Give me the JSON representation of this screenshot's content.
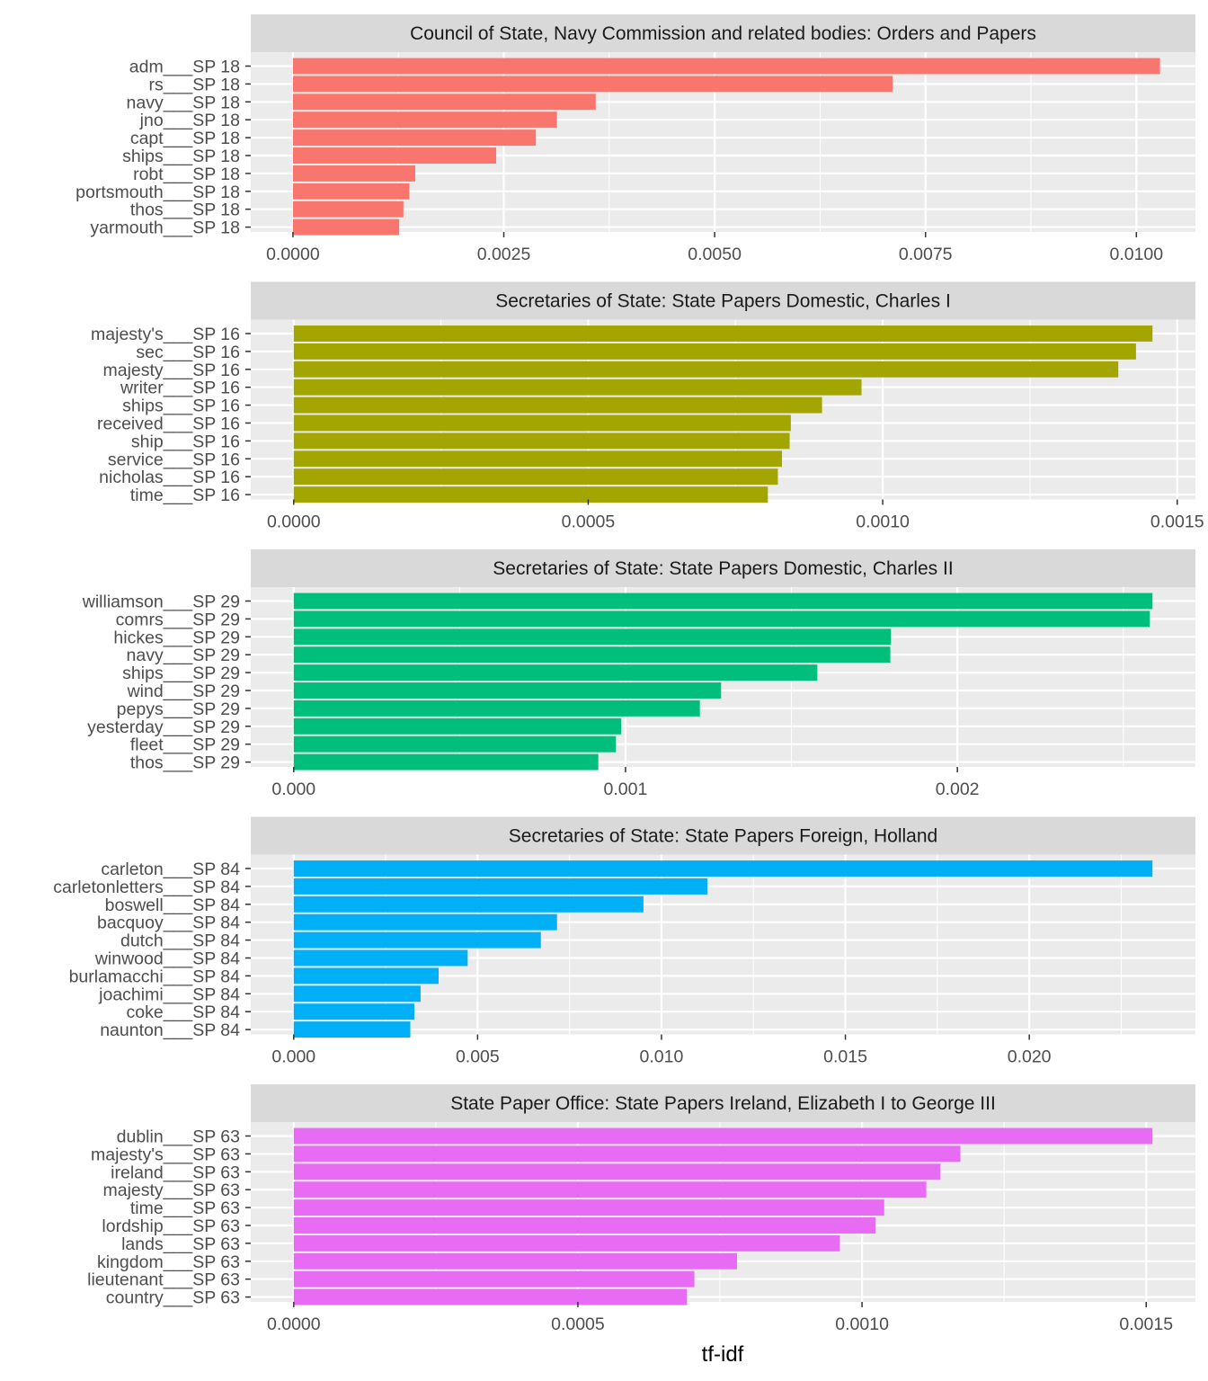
{
  "chart_data": {
    "type": "bar",
    "orientation": "horizontal",
    "layout": "faceted, 5 panels stacked vertically, free x scales",
    "xlabel": "tf-idf",
    "ylabel": "",
    "grid": true,
    "legend": "none",
    "panels": [
      {
        "title": "Council of State, Navy Commission and related bodies: Orders and Papers",
        "color": "#F8766D",
        "categories": [
          "adm___SP 18",
          "rs___SP 18",
          "navy___SP 18",
          "jno___SP 18",
          "capt___SP 18",
          "ships___SP 18",
          "robt___SP 18",
          "portsmouth___SP 18",
          "thos___SP 18",
          "yarmouth___SP 18"
        ],
        "values": [
          0.01028,
          0.00711,
          0.00359,
          0.00313,
          0.00288,
          0.00241,
          0.00145,
          0.00138,
          0.00131,
          0.00126
        ],
        "xlim": [
          -0.0005,
          0.0107
        ],
        "xticks": [
          0,
          0.0025,
          0.005,
          0.0075,
          0.01
        ],
        "xtick_labels": [
          "0.0000",
          "0.0025",
          "0.0050",
          "0.0075",
          "0.0100"
        ]
      },
      {
        "title": "Secretaries of State: State Papers Domestic, Charles I",
        "color": "#A3A500",
        "categories": [
          "majesty's___SP 16",
          "sec___SP 16",
          "majesty___SP 16",
          "writer___SP 16",
          "ships___SP 16",
          "received___SP 16",
          "ship___SP 16",
          "service___SP 16",
          "nicholas___SP 16",
          "time___SP 16"
        ],
        "values": [
          0.001458,
          0.00143,
          0.0014,
          0.000964,
          0.000897,
          0.000844,
          0.000842,
          0.000829,
          0.000822,
          0.000805
        ],
        "xlim": [
          -7.29e-05,
          0.0015309
        ],
        "xticks": [
          0,
          0.0005,
          0.001,
          0.0015
        ],
        "xtick_labels": [
          "0.0000",
          "0.0005",
          "0.0010",
          "0.0015"
        ]
      },
      {
        "title": "Secretaries of State: State Papers Domestic, Charles II",
        "color": "#00BF7D",
        "categories": [
          "williamson___SP 29",
          "comrs___SP 29",
          "hickes___SP 29",
          "navy___SP 29",
          "ships___SP 29",
          "wind___SP 29",
          "pepys___SP 29",
          "yesterday___SP 29",
          "fleet___SP 29",
          "thos___SP 29"
        ],
        "values": [
          0.002588,
          0.00258,
          0.0018,
          0.001798,
          0.001578,
          0.001288,
          0.001224,
          0.000987,
          0.000971,
          0.000918
        ],
        "xlim": [
          -0.0001294,
          0.0027174
        ],
        "xticks": [
          0,
          0.001,
          0.002
        ],
        "xtick_labels": [
          "0.000",
          "0.001",
          "0.002"
        ]
      },
      {
        "title": "Secretaries of State: State Papers Foreign, Holland",
        "color": "#00B0F6",
        "categories": [
          "carleton___SP 84",
          "carletonletters___SP 84",
          "boswell___SP 84",
          "bacquoy___SP 84",
          "dutch___SP 84",
          "winwood___SP 84",
          "burlamacchi___SP 84",
          "joachimi___SP 84",
          "coke___SP 84",
          "naunton___SP 84"
        ],
        "values": [
          0.02335,
          0.01125,
          0.00951,
          0.00716,
          0.00672,
          0.00473,
          0.00394,
          0.00345,
          0.00328,
          0.00317
        ],
        "xlim": [
          -0.0011675,
          0.0245175
        ],
        "xticks": [
          0,
          0.005,
          0.01,
          0.015,
          0.02
        ],
        "xtick_labels": [
          "0.000",
          "0.005",
          "0.010",
          "0.015",
          "0.020"
        ]
      },
      {
        "title": "State Paper Office: State Papers Ireland, Elizabeth I to George III",
        "color": "#E76BF3",
        "categories": [
          "dublin___SP 63",
          "majesty's___SP 63",
          "ireland___SP 63",
          "majesty___SP 63",
          "time___SP 63",
          "lordship___SP 63",
          "lands___SP 63",
          "kingdom___SP 63",
          "lieutenant___SP 63",
          "country___SP 63"
        ],
        "values": [
          0.001511,
          0.001173,
          0.001138,
          0.001113,
          0.001039,
          0.001024,
          0.000961,
          0.00078,
          0.000705,
          0.000692
        ],
        "xlim": [
          -7.56e-05,
          0.0015866
        ],
        "xticks": [
          0,
          0.0005,
          0.001,
          0.0015
        ],
        "xtick_labels": [
          "0.0000",
          "0.0005",
          "0.0010",
          "0.0015"
        ]
      }
    ]
  }
}
